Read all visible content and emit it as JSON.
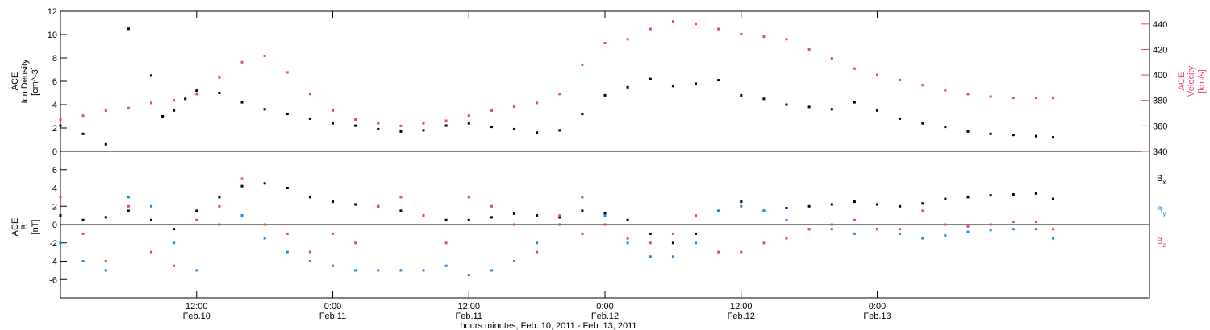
{
  "chart_data": [
    {
      "type": "scatter",
      "panel": "top",
      "left_ylabel": [
        "ACE",
        "Ion Density",
        "[cm^-3]"
      ],
      "right_ylabel": [
        "ACE",
        "Velocity",
        "[km/s]"
      ],
      "ylim": [
        0,
        12
      ],
      "y2lim": [
        340,
        450
      ],
      "yticks": [
        0,
        2,
        4,
        6,
        8,
        10,
        12
      ],
      "y2ticks": [
        340,
        360,
        380,
        400,
        420,
        440
      ],
      "colors": {
        "density": "#000000",
        "velocity": "#e8436a"
      },
      "series": [
        {
          "name": "Ion Density",
          "axis": "left",
          "color": "#000000",
          "x": [
            0,
            2,
            4,
            6,
            8,
            9,
            10,
            11,
            12,
            14,
            16,
            18,
            20,
            22,
            24,
            26,
            28,
            30,
            32,
            34,
            36,
            38,
            40,
            42,
            44,
            46,
            48,
            50,
            52,
            54,
            56,
            58,
            60,
            62,
            64,
            66,
            68,
            70,
            72,
            74,
            76,
            78,
            80,
            82,
            84,
            86,
            87.5
          ],
          "values": [
            2.2,
            1.5,
            0.6,
            10.5,
            6.5,
            3.0,
            3.5,
            4.5,
            5.2,
            5.0,
            4.2,
            3.6,
            3.2,
            2.8,
            2.4,
            2.2,
            1.9,
            1.7,
            1.8,
            2.2,
            2.4,
            2.1,
            1.9,
            1.6,
            1.8,
            3.2,
            4.8,
            5.5,
            6.2,
            5.6,
            5.8,
            6.1,
            4.8,
            4.5,
            4.0,
            3.8,
            3.6,
            4.2,
            3.5,
            2.8,
            2.4,
            2.1,
            1.7,
            1.5,
            1.4,
            1.3,
            1.2
          ]
        },
        {
          "name": "Velocity",
          "axis": "right",
          "color": "#e8436a",
          "x": [
            0,
            2,
            4,
            6,
            8,
            10,
            12,
            14,
            16,
            18,
            20,
            22,
            24,
            26,
            28,
            30,
            32,
            34,
            36,
            38,
            40,
            42,
            44,
            46,
            48,
            50,
            52,
            54,
            56,
            58,
            60,
            62,
            64,
            66,
            68,
            70,
            72,
            74,
            76,
            78,
            80,
            82,
            84,
            86,
            87.5
          ],
          "values": [
            365,
            368,
            372,
            374,
            378,
            380,
            385,
            398,
            410,
            415,
            402,
            385,
            372,
            365,
            362,
            360,
            362,
            364,
            368,
            372,
            375,
            378,
            385,
            408,
            425,
            428,
            436,
            442,
            440,
            436,
            432,
            430,
            428,
            420,
            413,
            405,
            400,
            396,
            392,
            388,
            385,
            383,
            382,
            382,
            382
          ]
        }
      ]
    },
    {
      "type": "scatter",
      "panel": "bottom",
      "left_ylabel": [
        "ACE",
        "B",
        "[nT]"
      ],
      "ylim": [
        -8,
        8
      ],
      "yticks": [
        -6,
        -4,
        -2,
        0,
        2,
        4,
        6
      ],
      "legend_placement": "right",
      "series": [
        {
          "name": "Bx",
          "label_main": "B",
          "label_sub": "x",
          "color": "#000000",
          "x": [
            0,
            2,
            4,
            6,
            8,
            10,
            12,
            14,
            16,
            18,
            20,
            22,
            24,
            26,
            28,
            30,
            32,
            34,
            36,
            38,
            40,
            42,
            44,
            46,
            48,
            50,
            52,
            54,
            56,
            58,
            60,
            62,
            64,
            66,
            68,
            70,
            72,
            74,
            76,
            78,
            80,
            82,
            84,
            86,
            87.5
          ],
          "values": [
            1.0,
            0.5,
            0.8,
            1.5,
            0.5,
            -0.5,
            1.5,
            3.0,
            4.2,
            4.5,
            4.0,
            3.0,
            2.5,
            2.2,
            2.0,
            1.5,
            1.0,
            0.5,
            0.5,
            0.8,
            1.2,
            1.0,
            0.8,
            1.5,
            1.2,
            0.5,
            -1.0,
            -2.0,
            -1.0,
            1.5,
            2.5,
            1.5,
            1.8,
            2.0,
            2.2,
            2.5,
            2.2,
            2.0,
            2.3,
            2.8,
            3.0,
            3.2,
            3.3,
            3.4,
            2.8
          ]
        },
        {
          "name": "By",
          "label_main": "B",
          "label_sub": "y",
          "color": "#1e88e5",
          "x": [
            0,
            2,
            4,
            6,
            8,
            10,
            12,
            14,
            16,
            18,
            20,
            22,
            24,
            26,
            28,
            30,
            32,
            34,
            36,
            38,
            40,
            42,
            44,
            46,
            48,
            50,
            52,
            54,
            56,
            58,
            60,
            62,
            64,
            66,
            68,
            70,
            72,
            74,
            76,
            78,
            80,
            82,
            84,
            86,
            87.5
          ],
          "values": [
            -2.0,
            -4.0,
            -5.0,
            3.0,
            2.0,
            -2.0,
            -5.0,
            0.0,
            1.0,
            -1.5,
            -3.0,
            -4.0,
            -4.5,
            -5.0,
            -5.0,
            -5.0,
            -5.0,
            -4.5,
            -5.5,
            -5.0,
            -4.0,
            -2.0,
            0.0,
            3.0,
            1.0,
            -2.0,
            -3.5,
            -3.5,
            -2.0,
            1.5,
            2.0,
            1.5,
            0.5,
            -0.5,
            -0.5,
            -1.0,
            -0.5,
            -1.0,
            -1.5,
            -1.2,
            -0.8,
            -0.6,
            -0.5,
            -0.5,
            -1.5
          ]
        },
        {
          "name": "Bz",
          "label_main": "B",
          "label_sub": "z",
          "color": "#e8436a",
          "x": [
            0,
            2,
            4,
            6,
            8,
            10,
            12,
            14,
            16,
            18,
            20,
            22,
            24,
            26,
            28,
            30,
            32,
            34,
            36,
            38,
            40,
            42,
            44,
            46,
            48,
            50,
            52,
            54,
            56,
            58,
            60,
            62,
            64,
            66,
            68,
            70,
            72,
            74,
            76,
            78,
            80,
            82,
            84,
            86,
            87.5
          ],
          "values": [
            3.0,
            -1.0,
            -4.0,
            2.0,
            -3.0,
            -4.5,
            0.5,
            2.0,
            5.0,
            0.0,
            -1.0,
            -3.0,
            -1.0,
            -2.0,
            2.0,
            3.0,
            1.0,
            -2.0,
            3.0,
            2.0,
            0.0,
            -3.0,
            1.0,
            -1.0,
            0.0,
            -1.5,
            -2.0,
            -1.0,
            1.0,
            -3.0,
            -3.0,
            -2.0,
            -1.5,
            -0.5,
            0.0,
            0.5,
            -0.5,
            -0.5,
            1.5,
            0.0,
            -0.2,
            0.0,
            0.3,
            0.3,
            -0.5
          ]
        }
      ]
    }
  ],
  "x_axis": {
    "range_hours": [
      0,
      96
    ],
    "ticks": [
      {
        "hour": 12,
        "time": "12:00",
        "date": "Feb.10"
      },
      {
        "hour": 24,
        "time": "0:00",
        "date": "Feb.11"
      },
      {
        "hour": 36,
        "time": "12:00",
        "date": "Feb.11"
      },
      {
        "hour": 48,
        "time": "0:00",
        "date": "Feb.12"
      },
      {
        "hour": 60,
        "time": "12:00",
        "date": "Feb.12"
      },
      {
        "hour": 72,
        "time": "0:00",
        "date": "Feb.13"
      }
    ],
    "xlabel": "hours:minutes, Feb. 10, 2011 - Feb. 13, 2011"
  }
}
